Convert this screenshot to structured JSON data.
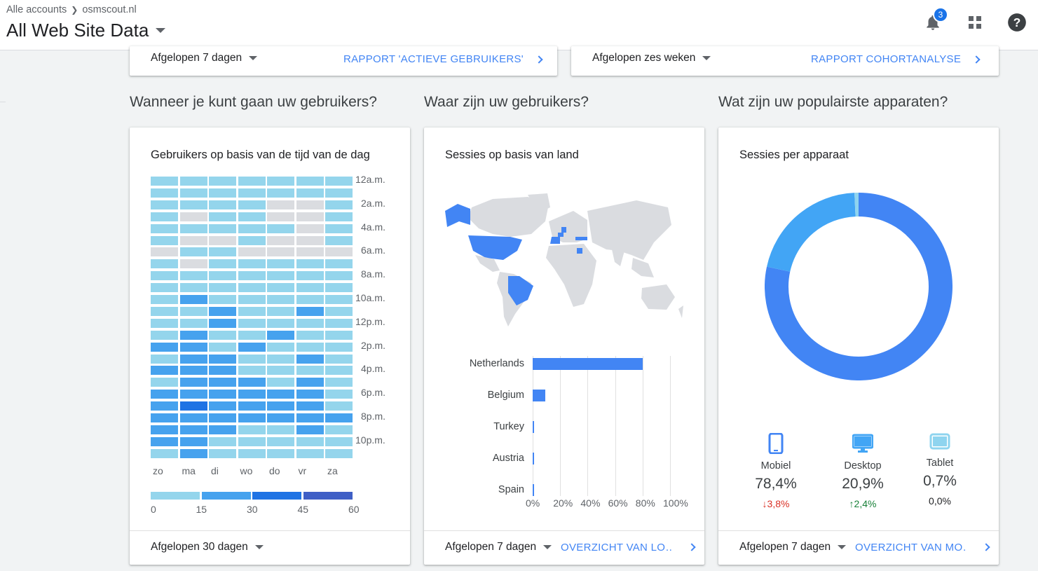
{
  "header": {
    "breadcrumb_account": "Alle accounts",
    "breadcrumb_property": "osmscout.nl",
    "view_title": "All Web Site Data",
    "notification_count": "3"
  },
  "top_cards": [
    {
      "range": "Afgelopen 7 dagen",
      "link": "RAPPORT 'ACTIEVE GEBRUIKERS'"
    },
    {
      "range": "Afgelopen zes weken",
      "link": "RAPPORT COHORTANALYSE"
    }
  ],
  "sections": {
    "when": "Wanneer je kunt gaan uw gebruikers?",
    "where": "Waar zijn uw gebruikers?",
    "devices": "Wat zijn uw populairste apparaten?"
  },
  "heatmap_card": {
    "title": "Gebruikers op basis van de tijd van de dag",
    "footer_range": "Afgelopen 30 dagen",
    "hour_labels": [
      "12a.m.",
      "2a.m.",
      "4a.m.",
      "6a.m.",
      "8a.m.",
      "10a.m.",
      "12p.m.",
      "2p.m.",
      "4p.m.",
      "6p.m.",
      "8p.m.",
      "10p.m."
    ],
    "day_labels": [
      "zo",
      "ma",
      "di",
      "wo",
      "do",
      "vr",
      "za"
    ],
    "legend_labels": [
      "0",
      "15",
      "30",
      "45",
      "60"
    ],
    "legend_colors": [
      "#94d5ec",
      "#46a2ee",
      "#1f73e4",
      "#3f5fc6"
    ]
  },
  "country_card": {
    "title": "Sessies op basis van land",
    "footer_range": "Afgelopen 7 dagen",
    "footer_link": "OVERZICHT VAN LO…",
    "highlight_color": "#4285f4",
    "land_color": "#dadce0"
  },
  "device_card": {
    "title": "Sessies per apparaat",
    "footer_range": "Afgelopen 7 dagen",
    "footer_link": "OVERZICHT VAN MO…",
    "items": [
      {
        "label": "Mobiel",
        "value": "78,4%",
        "change": "3,8%",
        "dir": "down",
        "color": "#4285f4"
      },
      {
        "label": "Desktop",
        "value": "20,9%",
        "change": "2,4%",
        "dir": "up",
        "color": "#42a5f5"
      },
      {
        "label": "Tablet",
        "value": "0,7%",
        "change": "0,0%",
        "dir": "none",
        "color": "#8fd4ef"
      }
    ]
  },
  "chart_data": [
    {
      "type": "heatmap",
      "title": "Gebruikers op basis van de tijd van de dag",
      "x": [
        "zo",
        "ma",
        "di",
        "wo",
        "do",
        "vr",
        "za"
      ],
      "y_tick_labels": [
        "12a.m.",
        "2a.m.",
        "4a.m.",
        "6a.m.",
        "8a.m.",
        "10a.m.",
        "12p.m.",
        "2p.m.",
        "4p.m.",
        "6p.m.",
        "8p.m.",
        "10p.m."
      ],
      "scale": [
        0,
        15,
        30,
        45,
        60
      ],
      "values_by_hour": [
        [
          10,
          10,
          10,
          10,
          10,
          10,
          10
        ],
        [
          10,
          10,
          10,
          10,
          10,
          10,
          10
        ],
        [
          10,
          10,
          10,
          10,
          0,
          0,
          10
        ],
        [
          10,
          0,
          10,
          10,
          0,
          0,
          10
        ],
        [
          10,
          10,
          10,
          10,
          10,
          0,
          10
        ],
        [
          10,
          0,
          0,
          10,
          0,
          0,
          10
        ],
        [
          0,
          10,
          10,
          0,
          0,
          0,
          0
        ],
        [
          10,
          0,
          10,
          10,
          10,
          10,
          10
        ],
        [
          10,
          10,
          10,
          10,
          10,
          10,
          10
        ],
        [
          10,
          10,
          10,
          10,
          10,
          10,
          10
        ],
        [
          10,
          22,
          10,
          10,
          10,
          10,
          10
        ],
        [
          10,
          10,
          22,
          10,
          10,
          22,
          10
        ],
        [
          10,
          10,
          22,
          10,
          10,
          10,
          10
        ],
        [
          10,
          22,
          10,
          10,
          22,
          10,
          10
        ],
        [
          22,
          22,
          10,
          22,
          10,
          10,
          10
        ],
        [
          10,
          22,
          22,
          10,
          10,
          22,
          10
        ],
        [
          22,
          22,
          22,
          10,
          10,
          10,
          10
        ],
        [
          10,
          22,
          22,
          22,
          10,
          22,
          10
        ],
        [
          22,
          22,
          22,
          22,
          22,
          22,
          10
        ],
        [
          22,
          35,
          22,
          22,
          22,
          22,
          10
        ],
        [
          22,
          22,
          22,
          22,
          22,
          22,
          22
        ],
        [
          22,
          22,
          22,
          10,
          10,
          22,
          10
        ],
        [
          22,
          22,
          10,
          10,
          10,
          10,
          10
        ],
        [
          10,
          22,
          10,
          10,
          10,
          10,
          10
        ]
      ]
    },
    {
      "type": "bar",
      "title": "Sessies op basis van land",
      "categories": [
        "Netherlands",
        "Belgium",
        "Turkey",
        "Austria",
        "Spain"
      ],
      "values": [
        80,
        9,
        1,
        0.5,
        0.5
      ],
      "x_tick_labels": [
        "0%",
        "20%",
        "40%",
        "60%",
        "80%",
        "100%"
      ],
      "xlim": [
        0,
        100
      ]
    },
    {
      "type": "pie",
      "title": "Sessies per apparaat",
      "categories": [
        "Mobiel",
        "Desktop",
        "Tablet"
      ],
      "values": [
        78.4,
        20.9,
        0.7
      ]
    }
  ]
}
